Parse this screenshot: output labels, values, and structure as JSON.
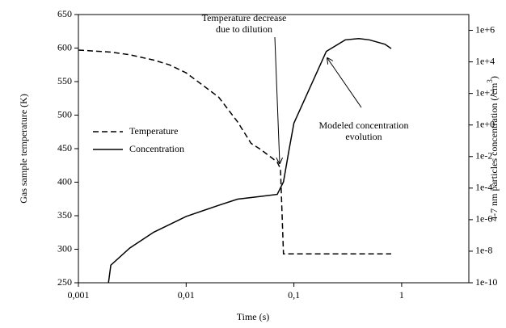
{
  "chart_data": {
    "type": "line",
    "xlabel": "Time (s)",
    "ylabel": "Gas sample temperature (K)",
    "y2label": [
      "4-7 nm particles concentration (/cm",
      "3",
      ")"
    ],
    "xscale": "log",
    "y2scale": "log",
    "xlim": [
      0.001,
      4.2
    ],
    "xticks": [
      {
        "value": 0.001,
        "label": "0,001"
      },
      {
        "value": 0.01,
        "label": "0,01"
      },
      {
        "value": 0.1,
        "label": "0,1"
      },
      1
    ],
    "ylim": [
      250,
      650
    ],
    "yticks": [
      250,
      300,
      350,
      400,
      450,
      500,
      550,
      600,
      650
    ],
    "y2lim": [
      1e-10,
      10000000.0
    ],
    "y2ticks": [
      {
        "value": 1e-10,
        "label": "1e-10"
      },
      {
        "value": 1e-08,
        "label": "1e-8"
      },
      {
        "value": 1e-06,
        "label": "1e-6"
      },
      {
        "value": 0.0001,
        "label": "1e-4"
      },
      {
        "value": 0.01,
        "label": "1e-2"
      },
      {
        "value": 1,
        "label": "1e+0"
      },
      {
        "value": 100,
        "label": "1e+2"
      },
      {
        "value": 10000,
        "label": "1e+4"
      },
      {
        "value": 1000000,
        "label": "1e+6"
      }
    ],
    "series": [
      {
        "name": "Temperature",
        "color": "#000000",
        "style": "dashed",
        "x": [
          0.001,
          0.002,
          0.003,
          0.005,
          0.007,
          0.01,
          0.02,
          0.03,
          0.04,
          0.05,
          0.07,
          0.075,
          0.08,
          0.8
        ],
        "values": [
          597,
          594,
          590,
          582,
          575,
          563,
          527,
          490,
          458,
          448,
          430,
          420,
          293,
          293
        ]
      },
      {
        "name": "Concentration",
        "color": "#000000",
        "style": "solid",
        "axis": "y2",
        "x": [
          0.0019,
          0.002,
          0.003,
          0.005,
          0.01,
          0.02,
          0.03,
          0.05,
          0.07,
          0.08,
          0.09,
          0.1,
          0.2,
          0.3,
          0.4,
          0.5,
          0.7,
          0.8
        ],
        "values": [
          1e-10,
          1.3e-09,
          1.6e-08,
          1.6e-07,
          1.6e-06,
          8e-06,
          2e-05,
          3e-05,
          4e-05,
          0.00025,
          0.025,
          1.3,
          46000,
          250000,
          300000,
          250000,
          130000,
          70000
        ]
      }
    ],
    "annotations": [
      {
        "lines": [
          "Temperature decrease",
          "due to dilution"
        ]
      },
      {
        "lines": [
          "Modeled concentration",
          "evolution"
        ]
      }
    ]
  }
}
